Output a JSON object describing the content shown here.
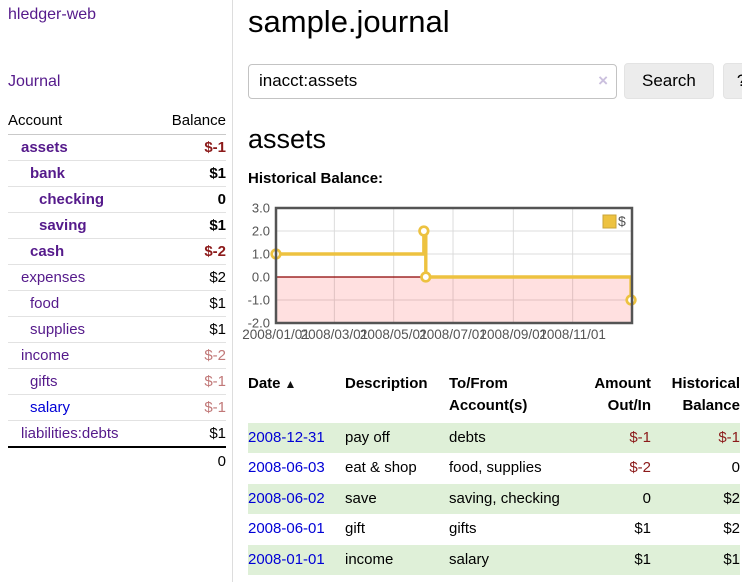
{
  "sidebar": {
    "brand": "hledger-web",
    "nav_journal": "Journal",
    "accounts_header": {
      "account": "Account",
      "balance": "Balance"
    },
    "accounts": [
      {
        "name": "assets",
        "balance": "$-1"
      },
      {
        "name": "bank",
        "balance": "$1"
      },
      {
        "name": "checking",
        "balance": "0"
      },
      {
        "name": "saving",
        "balance": "$1"
      },
      {
        "name": "cash",
        "balance": "$-2"
      },
      {
        "name": "expenses",
        "balance": "$2"
      },
      {
        "name": "food",
        "balance": "$1"
      },
      {
        "name": "supplies",
        "balance": "$1"
      },
      {
        "name": "income",
        "balance": "$-2"
      },
      {
        "name": "gifts",
        "balance": "$-1"
      },
      {
        "name": "salary",
        "balance": "$-1"
      },
      {
        "name": "liabilities:debts",
        "balance": "$1"
      }
    ],
    "total": "0"
  },
  "header": {
    "title": "sample.journal"
  },
  "search": {
    "value": "inacct:assets",
    "clear_icon": "×",
    "button_label": "Search",
    "help_label": "?"
  },
  "account_page": {
    "title": "assets",
    "chart_label": "Historical Balance:"
  },
  "chart_data": {
    "type": "line",
    "step": true,
    "title": "Historical Balance",
    "ylim": [
      -2,
      3
    ],
    "yticks": [
      3,
      2,
      1,
      0,
      -1,
      -2
    ],
    "x_domain_days": 366,
    "xticks": [
      {
        "day": 0,
        "label": "2008/01/01"
      },
      {
        "day": 60,
        "label": "2008/03/01"
      },
      {
        "day": 121,
        "label": "2008/05/01"
      },
      {
        "day": 182,
        "label": "2008/07/01"
      },
      {
        "day": 244,
        "label": "2008/09/01"
      },
      {
        "day": 305,
        "label": "2008/11/01"
      }
    ],
    "series": [
      {
        "name": "$",
        "color": "#edc240",
        "points": [
          {
            "date": "2008-01-01",
            "day": 0,
            "value": 1
          },
          {
            "date": "2008-06-01",
            "day": 152,
            "value": 2
          },
          {
            "date": "2008-06-03",
            "day": 154,
            "value": 0
          },
          {
            "date": "2008-12-31",
            "day": 365,
            "value": -1
          }
        ]
      }
    ],
    "legend": {
      "label": "$",
      "position": "top-right"
    },
    "grid": true,
    "colors": {
      "line": "#edc240",
      "marker_fill": "#ffffff",
      "negative_region": "rgba(255,0,0,0.12)",
      "zero_line": "#8c0000",
      "border": "#545454",
      "gridline": "#dcdcdc",
      "axis_text": "#545454"
    }
  },
  "register": {
    "columns": {
      "date": "Date",
      "description": "Description",
      "accounts": "To/From Account(s)",
      "amount": "Amount Out/In",
      "balance": "Historical Balance"
    },
    "sort_icon": "▲",
    "rows": [
      {
        "date": "2008-12-31",
        "description": "pay off",
        "accounts": "debts",
        "amount": "$-1",
        "balance": "$-1"
      },
      {
        "date": "2008-06-03",
        "description": "eat & shop",
        "accounts": "food, supplies",
        "amount": "$-2",
        "balance": "0"
      },
      {
        "date": "2008-06-02",
        "description": "save",
        "accounts": "saving, checking",
        "amount": "0",
        "balance": "$2"
      },
      {
        "date": "2008-06-01",
        "description": "gift",
        "accounts": "gifts",
        "amount": "$1",
        "balance": "$2"
      },
      {
        "date": "2008-01-01",
        "description": "income",
        "accounts": "salary",
        "amount": "$1",
        "balance": "$1"
      }
    ]
  },
  "theme_colors": {
    "link_purple": "#551a8b",
    "link_blue": "#0000d6",
    "negative_strong": "#8c1a1a",
    "negative_light": "#c17878",
    "row_stripe_green": "#dff0d8"
  }
}
